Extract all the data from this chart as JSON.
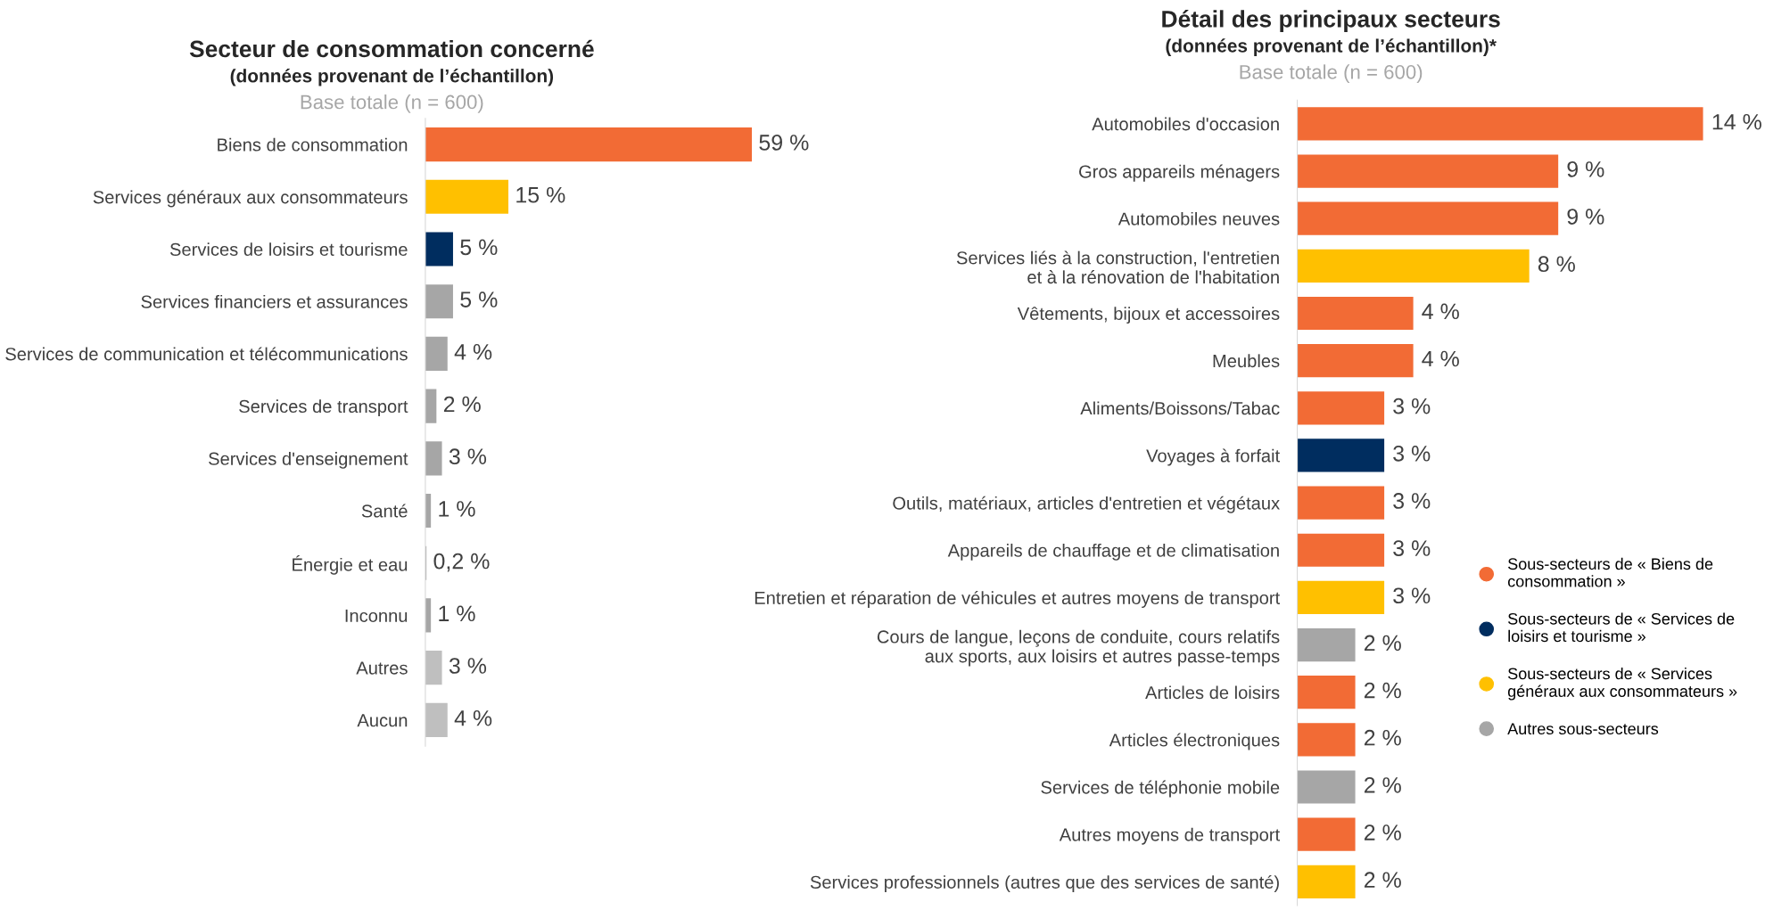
{
  "chart_data": [
    {
      "type": "bar",
      "orientation": "horizontal",
      "title": "Secteur de consommation concerné",
      "subtitle": "(données provenant de l’échantillon)",
      "annotations": [
        "Base totale (n = 600)"
      ],
      "categories": [
        "Biens de consommation",
        "Services généraux aux consommateurs",
        "Services de loisirs et tourisme",
        "Services financiers et assurances",
        "Services de communication et télécommunications",
        "Services de transport",
        "Services d'enseignement",
        "Santé",
        "Énergie et eau",
        "Inconnu",
        "Autres",
        "Aucun"
      ],
      "values": [
        59,
        15,
        5,
        5,
        4,
        2,
        3,
        1,
        0.2,
        1,
        3,
        4
      ],
      "value_labels": [
        "59 %",
        "15 %",
        "5 %",
        "5 %",
        "4 %",
        "2 %",
        "3 %",
        "1 %",
        "0,2 %",
        "1 %",
        "3 %",
        "4 %"
      ],
      "colors": [
        "#f26b35",
        "#ffc000",
        "#002d5f",
        "#a6a6a6",
        "#a6a6a6",
        "#a6a6a6",
        "#a6a6a6",
        "#a6a6a6",
        "#a6a6a6",
        "#a6a6a6",
        "#bfbfbf",
        "#bfbfbf"
      ]
    },
    {
      "type": "bar",
      "orientation": "horizontal",
      "stacked": true,
      "title": "Détail des principaux secteurs",
      "subtitle": "(données provenant de l’échantillon)*",
      "annotations": [
        "Base totale (n = 600)"
      ],
      "categories": [
        "Automobiles d'occasion",
        "Gros appareils ménagers",
        "Automobiles neuves",
        "Services liés à la construction, l'entretien\net à la rénovation de l'habitation",
        "Vêtements, bijoux et accessoires",
        "Meubles",
        "Aliments/Boissons/Tabac",
        "Voyages à forfait",
        "Outils, matériaux, articles d'entretien et végétaux",
        "Appareils de chauffage et de climatisation",
        "Entretien et réparation de véhicules et autres moyens de transport",
        "Cours de langue, leçons de conduite, cours relatifs\naux sports, aux loisirs et autres passe-temps",
        "Articles de loisirs",
        "Articles électroniques",
        "Services de téléphonie mobile",
        "Autres moyens de transport",
        "Services professionnels (autres que des services de santé)"
      ],
      "series": [
        {
          "name": "Sous-secteurs de « Biens de\nconsommation »",
          "color": "#f26b35",
          "values": [
            14,
            9,
            9,
            null,
            4,
            4,
            3,
            null,
            3,
            3,
            null,
            null,
            2,
            2,
            null,
            2,
            null
          ],
          "value_labels": [
            "14 %",
            "9 %",
            "9 %",
            null,
            "4 %",
            "4 %",
            "3 %",
            null,
            "3 %",
            "3 %",
            null,
            null,
            "2 %",
            "2 %",
            null,
            "2 %",
            null
          ]
        },
        {
          "name": "Sous-secteurs de « Services de\nloisirs et tourisme »",
          "color": "#002d5f",
          "values": [
            null,
            null,
            null,
            null,
            null,
            null,
            null,
            3,
            null,
            null,
            null,
            null,
            null,
            null,
            null,
            null,
            null
          ],
          "value_labels": [
            null,
            null,
            null,
            null,
            null,
            null,
            null,
            "3 %",
            null,
            null,
            null,
            null,
            null,
            null,
            null,
            null,
            null
          ]
        },
        {
          "name": "Sous-secteurs de « Services\ngénéraux aux consommateurs »",
          "color": "#ffc000",
          "values": [
            null,
            null,
            null,
            8,
            null,
            null,
            null,
            null,
            null,
            null,
            3,
            null,
            null,
            null,
            null,
            null,
            2
          ],
          "value_labels": [
            null,
            null,
            null,
            "8 %",
            null,
            null,
            null,
            null,
            null,
            null,
            "3 %",
            null,
            null,
            null,
            null,
            null,
            "2 %"
          ]
        },
        {
          "name": "Autres sous-secteurs",
          "color": "#a6a6a6",
          "values": [
            null,
            null,
            null,
            null,
            null,
            null,
            null,
            null,
            null,
            null,
            null,
            2,
            null,
            null,
            2,
            null,
            null
          ],
          "value_labels": [
            null,
            null,
            null,
            null,
            null,
            null,
            null,
            null,
            null,
            null,
            null,
            "2 %",
            null,
            null,
            "2 %",
            null,
            null
          ]
        }
      ],
      "legend": "right"
    }
  ]
}
